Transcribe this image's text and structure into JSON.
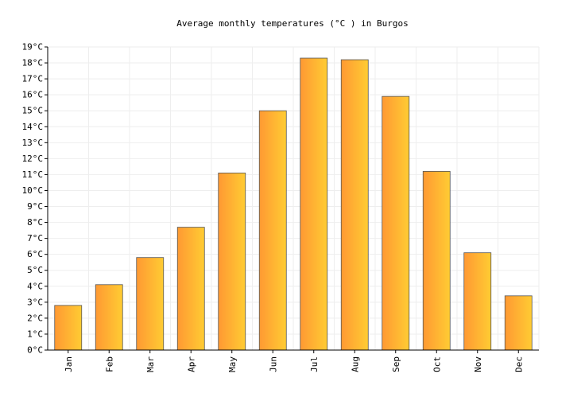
{
  "chart_data": {
    "type": "bar",
    "title": "Average monthly temperatures (°C ) in Burgos",
    "xlabel": "",
    "ylabel": "",
    "categories": [
      "Jan",
      "Feb",
      "Mar",
      "Apr",
      "May",
      "Jun",
      "Jul",
      "Aug",
      "Sep",
      "Oct",
      "Nov",
      "Dec"
    ],
    "values": [
      2.8,
      4.1,
      5.8,
      7.7,
      11.1,
      15.0,
      18.3,
      18.2,
      15.9,
      11.2,
      6.1,
      3.4
    ],
    "ylim": [
      0,
      19
    ],
    "yticks": [
      0,
      1,
      2,
      3,
      4,
      5,
      6,
      7,
      8,
      9,
      10,
      11,
      12,
      13,
      14,
      15,
      16,
      17,
      18,
      19
    ],
    "ytick_labels": [
      "0°C",
      "1°C",
      "2°C",
      "3°C",
      "4°C",
      "5°C",
      "6°C",
      "7°C",
      "8°C",
      "9°C",
      "10°C",
      "11°C",
      "12°C",
      "13°C",
      "14°C",
      "15°C",
      "16°C",
      "17°C",
      "18°C",
      "19°C"
    ],
    "grid": true,
    "legend": "none",
    "colors": {
      "bar_light": "#ffcc33",
      "bar_dark": "#ff9933",
      "bar_stroke": "#555555",
      "grid": "#eeeeee",
      "axis": "#000000"
    }
  }
}
